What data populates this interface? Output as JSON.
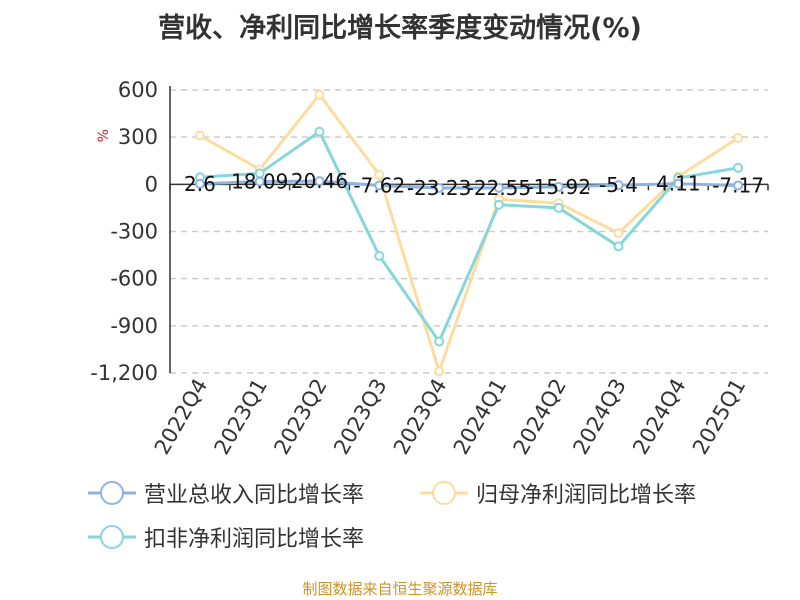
{
  "chart_data": {
    "type": "line",
    "title": "营收、净利同比增长率季度变动情况(%)",
    "ylabel": "%",
    "xlabel": "",
    "categories": [
      "2022Q4",
      "2023Q1",
      "2023Q2",
      "2023Q3",
      "2023Q4",
      "2024Q1",
      "2024Q2",
      "2024Q3",
      "2024Q4",
      "2025Q1"
    ],
    "ylim": [
      -1200,
      600
    ],
    "yticks": [
      600,
      300,
      0,
      -300,
      -600,
      -900,
      -1200
    ],
    "ytick_labels": [
      "600",
      "300",
      "0",
      "-300",
      "-600",
      "-900",
      "-1,200"
    ],
    "grid": true,
    "legend_position": "bottom",
    "series": [
      {
        "name": "营业总收入同比增长率",
        "color": "#8fb3e0",
        "values": [
          2.6,
          18.09,
          20.46,
          -7.62,
          -23.23,
          -22.55,
          -15.92,
          -5.4,
          4.11,
          -7.17
        ],
        "labels": [
          "2.6",
          "18.09",
          "20.46",
          "-7.62",
          "-23.23",
          "-22.55",
          "-15.92",
          "-5.4",
          "4.11",
          "-7.17"
        ]
      },
      {
        "name": "归母净利润同比增长率",
        "color": "#fddca0",
        "values": [
          310,
          95,
          570,
          60,
          -1190,
          -95,
          -120,
          -310,
          50,
          295
        ]
      },
      {
        "name": "扣非净利润同比增长率",
        "color": "#86d6da",
        "values": [
          45,
          70,
          335,
          -455,
          -1000,
          -130,
          -150,
          -395,
          40,
          105
        ]
      }
    ]
  },
  "source_note": "制图数据来自恒生聚源数据库"
}
